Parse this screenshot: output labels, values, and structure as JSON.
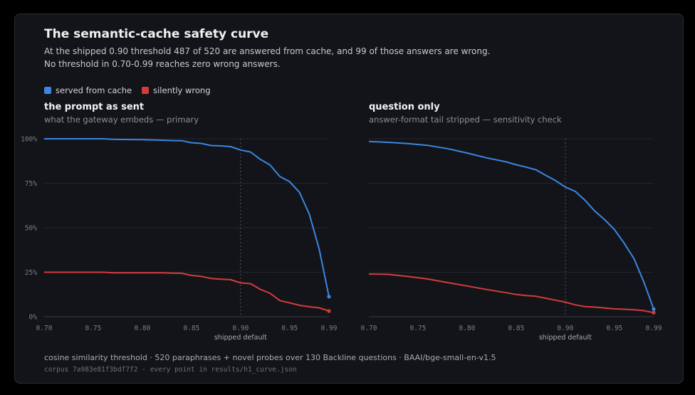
{
  "title": "The semantic-cache safety curve",
  "subtitle_line1": "At the shipped 0.90 threshold 487 of 520 are answered from cache, and 99 of those answers are wrong.",
  "subtitle_line2": "No threshold in 0.70-0.99 reaches zero wrong answers.",
  "legend": [
    {
      "label": "served from cache",
      "color": "#3a86e0"
    },
    {
      "label": "silently wrong",
      "color": "#d43c3c"
    }
  ],
  "footer_line1": "cosine similarity threshold · 520 paraphrases + novel probes over 130 Backline questions · BAAI/bge-small-en-v1.5",
  "footer_line2": "corpus 7a983e81f3bdf7f2 · every point in results/h1_curve.json",
  "colors": {
    "served": "#3a86e0",
    "wrong": "#d43c3c",
    "background": "#131419",
    "grid": "#24262d"
  },
  "chart_data": [
    {
      "type": "line",
      "panel_title": "the prompt as sent",
      "panel_subtitle": "what the gateway embeds — primary",
      "xlabel": "shipped default",
      "x_ticks": [
        "0.70",
        "0.75",
        "0.80",
        "0.85",
        "0.90",
        "0.95",
        "0.99"
      ],
      "y_ticks": [
        "0%",
        "25%",
        "50%",
        "75%",
        "100%"
      ],
      "xlim": [
        0.7,
        0.99
      ],
      "ylim": [
        0,
        100
      ],
      "reference_line": 0.9,
      "x": [
        0.7,
        0.72,
        0.74,
        0.76,
        0.77,
        0.78,
        0.8,
        0.82,
        0.83,
        0.84,
        0.85,
        0.86,
        0.87,
        0.88,
        0.89,
        0.9,
        0.91,
        0.92,
        0.93,
        0.94,
        0.95,
        0.96,
        0.97,
        0.98,
        0.99
      ],
      "series": [
        {
          "name": "served from cache",
          "values": [
            100,
            100,
            100,
            100,
            99.7,
            99.6,
            99.5,
            99.2,
            99,
            98.9,
            97.8,
            97.4,
            96.2,
            96,
            95.6,
            93.7,
            92.6,
            88.5,
            85.3,
            78.8,
            75.9,
            69.9,
            57.6,
            38.1,
            11.3
          ]
        },
        {
          "name": "silently wrong",
          "values": [
            25,
            25,
            25,
            25,
            24.7,
            24.7,
            24.7,
            24.7,
            24.5,
            24.4,
            23.2,
            22.7,
            21.5,
            21.1,
            20.8,
            19.0,
            18.6,
            15.4,
            13.2,
            9.1,
            7.8,
            6.4,
            5.6,
            5.0,
            3.2
          ]
        }
      ]
    },
    {
      "type": "line",
      "panel_title": "question only",
      "panel_subtitle": "answer-format tail stripped — sensitivity check",
      "xlabel": "shipped default",
      "x_ticks": [
        "0.70",
        "0.75",
        "0.80",
        "0.85",
        "0.90",
        "0.95",
        "0.99"
      ],
      "y_ticks": [
        "0%",
        "25%",
        "50%",
        "75%",
        "100%"
      ],
      "xlim": [
        0.7,
        0.99
      ],
      "ylim": [
        0,
        100
      ],
      "reference_line": 0.9,
      "x": [
        0.7,
        0.72,
        0.74,
        0.76,
        0.78,
        0.8,
        0.82,
        0.84,
        0.85,
        0.86,
        0.87,
        0.88,
        0.89,
        0.9,
        0.91,
        0.92,
        0.93,
        0.94,
        0.95,
        0.96,
        0.97,
        0.98,
        0.99
      ],
      "series": [
        {
          "name": "served from cache",
          "values": [
            98.5,
            98,
            97.3,
            96.3,
            94.5,
            92,
            89.3,
            87,
            85.4,
            84.1,
            82.6,
            79.5,
            76.5,
            72.9,
            70.5,
            65.5,
            59.4,
            54.6,
            49,
            41.3,
            32.6,
            19.5,
            4.3
          ]
        },
        {
          "name": "silently wrong",
          "values": [
            24,
            23.8,
            22.6,
            21.2,
            19.2,
            17.3,
            15.3,
            13.5,
            12.5,
            11.9,
            11.5,
            10.4,
            9.3,
            8.2,
            6.7,
            5.7,
            5.4,
            4.9,
            4.4,
            4.2,
            3.9,
            3.4,
            2.3
          ]
        }
      ]
    }
  ]
}
